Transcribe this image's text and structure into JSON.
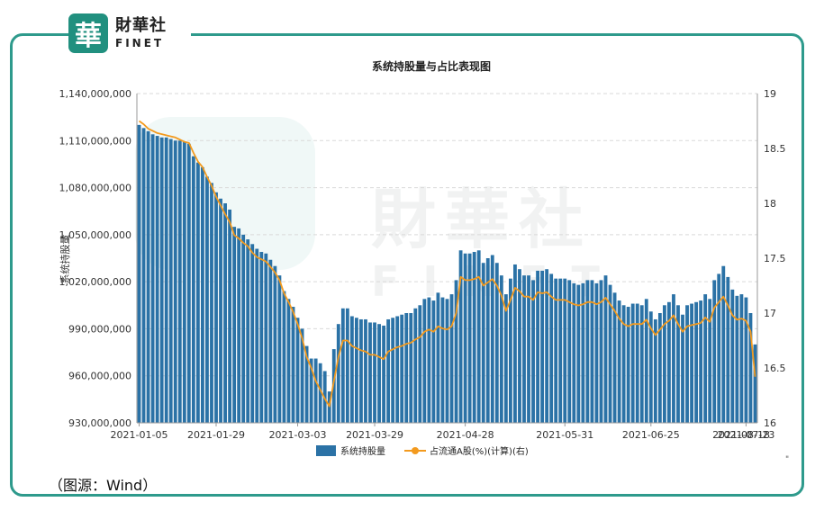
{
  "brand": {
    "mark": "華",
    "name_cn": "財華社",
    "name_en": "FINET"
  },
  "watermark": {
    "cn": "財華社",
    "en": "FINET"
  },
  "source_note": "（图源：Wind）",
  "corner_mark": "\"",
  "chart_data": {
    "type": "bar+line",
    "title": "系统持股量与占比表现图",
    "ylabel": "系统持股量",
    "ylim": [
      930000000,
      1140000000
    ],
    "y_ticks": [
      "1,140,000,000",
      "1,110,000,000",
      "1,080,000,000",
      "1,050,000,000",
      "1,020,000,000",
      "990,000,000",
      "960,000,000",
      "930,000,000"
    ],
    "y2lim": [
      16,
      19
    ],
    "y2_ticks": [
      "19",
      "18.5",
      "18",
      "17.5",
      "17",
      "16.5",
      "16"
    ],
    "x_ticks": [
      "2021-01-05",
      "2021-01-29",
      "2021-03-03",
      "2021-03-29",
      "2021-04-28",
      "2021-05-31",
      "2021-06-25",
      "2021-07-23",
      "2021-08-18"
    ],
    "x_tick_index": [
      0,
      17,
      35,
      52,
      72,
      94,
      113,
      134,
      152
    ],
    "colors": {
      "bar": "#2b72a6",
      "line": "#f39a1e",
      "grid": "#d9d9d9",
      "axis": "#999999"
    },
    "legend_position": "bottom",
    "series": [
      {
        "name": "系统持股量",
        "kind": "bar",
        "values": [
          1120000000,
          1118000000,
          1116000000,
          1114000000,
          1113000000,
          1112000000,
          1112000000,
          1111000000,
          1110000000,
          1110000000,
          1109000000,
          1108000000,
          1100000000,
          1096000000,
          1093000000,
          1087000000,
          1083000000,
          1077000000,
          1073000000,
          1070000000,
          1066000000,
          1055000000,
          1054000000,
          1050000000,
          1047000000,
          1044000000,
          1041000000,
          1039000000,
          1038000000,
          1034000000,
          1030000000,
          1024000000,
          1014000000,
          1009000000,
          1004000000,
          997000000,
          990000000,
          979000000,
          971000000,
          971000000,
          968000000,
          963000000,
          950000000,
          977000000,
          993000000,
          1003000000,
          1003000000,
          998000000,
          997000000,
          996000000,
          996000000,
          994000000,
          994000000,
          993000000,
          992000000,
          996000000,
          997000000,
          998000000,
          999000000,
          1000000000,
          1000000000,
          1003000000,
          1005000000,
          1009000000,
          1010000000,
          1008000000,
          1013000000,
          1010000000,
          1009000000,
          1012000000,
          1021000000,
          1040000000,
          1038000000,
          1038000000,
          1039000000,
          1040000000,
          1032000000,
          1035000000,
          1037000000,
          1032000000,
          1024000000,
          1012000000,
          1022000000,
          1031000000,
          1028000000,
          1024000000,
          1024000000,
          1021000000,
          1027000000,
          1027000000,
          1028000000,
          1025000000,
          1022000000,
          1022000000,
          1022000000,
          1021000000,
          1019000000,
          1018000000,
          1019000000,
          1021000000,
          1021000000,
          1019000000,
          1021000000,
          1024000000,
          1018000000,
          1013000000,
          1008000000,
          1005000000,
          1004000000,
          1006000000,
          1006000000,
          1005000000,
          1009000000,
          1001000000,
          996000000,
          1000000000,
          1005000000,
          1007000000,
          1012000000,
          1005000000,
          999000000,
          1005000000,
          1006000000,
          1007000000,
          1008000000,
          1012000000,
          1009000000,
          1021000000,
          1025000000,
          1030000000,
          1023000000,
          1015000000,
          1011000000,
          1012000000,
          1010000000,
          1000000000,
          980000000
        ],
        "x_index_note": ""
      },
      {
        "name": "占流通A股(%)(计算)(右)",
        "kind": "line",
        "values": [
          18.75,
          18.72,
          18.68,
          18.66,
          18.64,
          18.63,
          18.62,
          18.61,
          18.6,
          18.58,
          18.56,
          18.55,
          18.46,
          18.38,
          18.33,
          18.24,
          18.16,
          18.06,
          17.98,
          17.9,
          17.83,
          17.71,
          17.68,
          17.64,
          17.61,
          17.55,
          17.51,
          17.49,
          17.47,
          17.42,
          17.37,
          17.3,
          17.18,
          17.1,
          17.01,
          16.9,
          16.77,
          16.6,
          16.5,
          16.38,
          16.3,
          16.22,
          16.15,
          16.38,
          16.6,
          16.75,
          16.75,
          16.7,
          16.68,
          16.66,
          16.65,
          16.62,
          16.62,
          16.6,
          16.58,
          16.65,
          16.67,
          16.69,
          16.7,
          16.72,
          16.73,
          16.76,
          16.78,
          16.83,
          16.85,
          16.83,
          16.88,
          16.86,
          16.85,
          16.88,
          17.0,
          17.33,
          17.3,
          17.3,
          17.31,
          17.33,
          17.25,
          17.28,
          17.31,
          17.25,
          17.16,
          17.02,
          17.12,
          17.23,
          17.2,
          17.15,
          17.15,
          17.12,
          17.19,
          17.18,
          17.19,
          17.15,
          17.12,
          17.12,
          17.12,
          17.1,
          17.08,
          17.07,
          17.08,
          17.1,
          17.1,
          17.08,
          17.1,
          17.14,
          17.08,
          17.02,
          16.95,
          16.9,
          16.88,
          16.9,
          16.9,
          16.9,
          16.94,
          16.86,
          16.8,
          16.85,
          16.9,
          16.93,
          16.98,
          16.9,
          16.83,
          16.88,
          16.89,
          16.9,
          16.91,
          16.96,
          16.92,
          17.05,
          17.1,
          17.15,
          17.07,
          16.98,
          16.94,
          16.95,
          16.93,
          16.83,
          16.42
        ]
      }
    ]
  }
}
